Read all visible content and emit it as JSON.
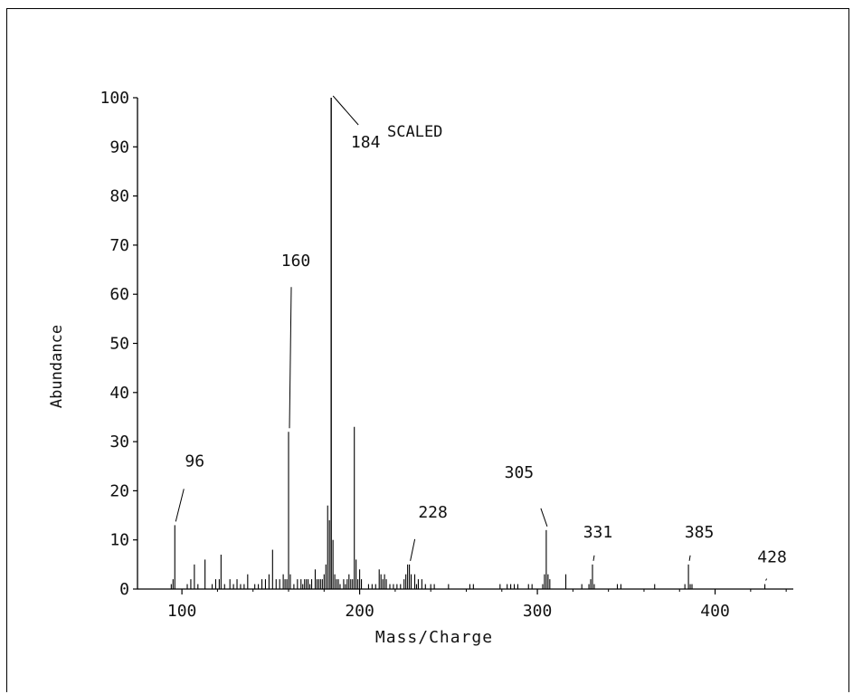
{
  "chart_data": {
    "type": "bar",
    "title": "",
    "annotation": "SCALED",
    "xlabel": "Mass/Charge",
    "ylabel": "Abundance",
    "xlim": [
      90,
      445
    ],
    "ylim": [
      0,
      100
    ],
    "x_ticks": [
      100,
      200,
      300,
      400
    ],
    "x_tick_labels": [
      "100",
      "200",
      "300",
      "400"
    ],
    "y_ticks": [
      0,
      10,
      20,
      30,
      40,
      50,
      60,
      70,
      80,
      90,
      100
    ],
    "y_tick_labels": [
      "0",
      "10",
      "20",
      "30",
      "40",
      "50",
      "60",
      "70",
      "80",
      "90",
      "100"
    ],
    "grid": false,
    "peak_labels": [
      {
        "mz": 96,
        "text": "96"
      },
      {
        "mz": 160,
        "text": "160"
      },
      {
        "mz": 184,
        "text": "184"
      },
      {
        "mz": 228,
        "text": "228"
      },
      {
        "mz": 305,
        "text": "305"
      },
      {
        "mz": 331,
        "text": "331"
      },
      {
        "mz": 385,
        "text": "385"
      },
      {
        "mz": 428,
        "text": "428"
      }
    ],
    "peaks": [
      {
        "x": 94,
        "y": 1
      },
      {
        "x": 95,
        "y": 2
      },
      {
        "x": 96,
        "y": 13
      },
      {
        "x": 103,
        "y": 1
      },
      {
        "x": 105,
        "y": 2
      },
      {
        "x": 107,
        "y": 5
      },
      {
        "x": 109,
        "y": 1
      },
      {
        "x": 113,
        "y": 6
      },
      {
        "x": 117,
        "y": 1
      },
      {
        "x": 119,
        "y": 2
      },
      {
        "x": 121,
        "y": 2
      },
      {
        "x": 122,
        "y": 7
      },
      {
        "x": 124,
        "y": 1
      },
      {
        "x": 127,
        "y": 2
      },
      {
        "x": 129,
        "y": 1
      },
      {
        "x": 131,
        "y": 2
      },
      {
        "x": 133,
        "y": 1
      },
      {
        "x": 135,
        "y": 1
      },
      {
        "x": 137,
        "y": 3
      },
      {
        "x": 141,
        "y": 1
      },
      {
        "x": 143,
        "y": 1
      },
      {
        "x": 145,
        "y": 2
      },
      {
        "x": 147,
        "y": 2
      },
      {
        "x": 149,
        "y": 3
      },
      {
        "x": 151,
        "y": 8
      },
      {
        "x": 153,
        "y": 2
      },
      {
        "x": 155,
        "y": 2
      },
      {
        "x": 157,
        "y": 3
      },
      {
        "x": 158,
        "y": 2
      },
      {
        "x": 159,
        "y": 2
      },
      {
        "x": 160,
        "y": 32
      },
      {
        "x": 161,
        "y": 3
      },
      {
        "x": 163,
        "y": 1
      },
      {
        "x": 165,
        "y": 2
      },
      {
        "x": 167,
        "y": 2
      },
      {
        "x": 168,
        "y": 1
      },
      {
        "x": 169,
        "y": 2
      },
      {
        "x": 170,
        "y": 2
      },
      {
        "x": 171,
        "y": 2
      },
      {
        "x": 172,
        "y": 1
      },
      {
        "x": 173,
        "y": 2
      },
      {
        "x": 175,
        "y": 4
      },
      {
        "x": 176,
        "y": 2
      },
      {
        "x": 177,
        "y": 2
      },
      {
        "x": 178,
        "y": 2
      },
      {
        "x": 179,
        "y": 2
      },
      {
        "x": 180,
        "y": 3
      },
      {
        "x": 181,
        "y": 5
      },
      {
        "x": 182,
        "y": 17
      },
      {
        "x": 183,
        "y": 14
      },
      {
        "x": 184,
        "y": 100
      },
      {
        "x": 185,
        "y": 10
      },
      {
        "x": 186,
        "y": 3
      },
      {
        "x": 187,
        "y": 2
      },
      {
        "x": 188,
        "y": 2
      },
      {
        "x": 189,
        "y": 1
      },
      {
        "x": 191,
        "y": 2
      },
      {
        "x": 192,
        "y": 1
      },
      {
        "x": 193,
        "y": 2
      },
      {
        "x": 194,
        "y": 3
      },
      {
        "x": 195,
        "y": 2
      },
      {
        "x": 196,
        "y": 2
      },
      {
        "x": 197,
        "y": 33
      },
      {
        "x": 198,
        "y": 6
      },
      {
        "x": 199,
        "y": 2
      },
      {
        "x": 200,
        "y": 4
      },
      {
        "x": 201,
        "y": 2
      },
      {
        "x": 205,
        "y": 1
      },
      {
        "x": 207,
        "y": 1
      },
      {
        "x": 209,
        "y": 1
      },
      {
        "x": 211,
        "y": 4
      },
      {
        "x": 212,
        "y": 3
      },
      {
        "x": 213,
        "y": 2
      },
      {
        "x": 214,
        "y": 3
      },
      {
        "x": 215,
        "y": 2
      },
      {
        "x": 217,
        "y": 1
      },
      {
        "x": 219,
        "y": 1
      },
      {
        "x": 221,
        "y": 1
      },
      {
        "x": 223,
        "y": 1
      },
      {
        "x": 225,
        "y": 2
      },
      {
        "x": 226,
        "y": 3
      },
      {
        "x": 227,
        "y": 5
      },
      {
        "x": 228,
        "y": 5
      },
      {
        "x": 229,
        "y": 3
      },
      {
        "x": 231,
        "y": 3
      },
      {
        "x": 232,
        "y": 1
      },
      {
        "x": 233,
        "y": 2
      },
      {
        "x": 235,
        "y": 2
      },
      {
        "x": 237,
        "y": 1
      },
      {
        "x": 240,
        "y": 1
      },
      {
        "x": 242,
        "y": 1
      },
      {
        "x": 250,
        "y": 1
      },
      {
        "x": 262,
        "y": 1
      },
      {
        "x": 264,
        "y": 1
      },
      {
        "x": 279,
        "y": 1
      },
      {
        "x": 283,
        "y": 1
      },
      {
        "x": 285,
        "y": 1
      },
      {
        "x": 287,
        "y": 1
      },
      {
        "x": 289,
        "y": 1
      },
      {
        "x": 295,
        "y": 1
      },
      {
        "x": 297,
        "y": 1
      },
      {
        "x": 303,
        "y": 1
      },
      {
        "x": 304,
        "y": 3
      },
      {
        "x": 305,
        "y": 12
      },
      {
        "x": 306,
        "y": 3
      },
      {
        "x": 307,
        "y": 2
      },
      {
        "x": 316,
        "y": 3
      },
      {
        "x": 325,
        "y": 1
      },
      {
        "x": 329,
        "y": 1
      },
      {
        "x": 330,
        "y": 2
      },
      {
        "x": 331,
        "y": 5
      },
      {
        "x": 332,
        "y": 1
      },
      {
        "x": 345,
        "y": 1
      },
      {
        "x": 347,
        "y": 1
      },
      {
        "x": 366,
        "y": 1
      },
      {
        "x": 383,
        "y": 1
      },
      {
        "x": 385,
        "y": 5
      },
      {
        "x": 386,
        "y": 1
      },
      {
        "x": 387,
        "y": 1
      },
      {
        "x": 428,
        "y": 1
      }
    ]
  }
}
